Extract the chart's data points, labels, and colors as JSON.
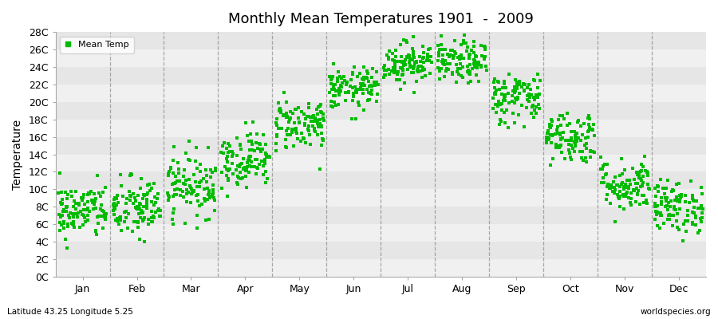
{
  "title": "Monthly Mean Temperatures 1901  -  2009",
  "ylabel": "Temperature",
  "subtitle_left": "Latitude 43.25 Longitude 5.25",
  "subtitle_right": "worldspecies.org",
  "legend_label": "Mean Temp",
  "ytick_labels": [
    "0C",
    "2C",
    "4C",
    "6C",
    "8C",
    "10C",
    "12C",
    "14C",
    "16C",
    "18C",
    "20C",
    "22C",
    "24C",
    "26C",
    "28C"
  ],
  "ytick_values": [
    0,
    2,
    4,
    6,
    8,
    10,
    12,
    14,
    16,
    18,
    20,
    22,
    24,
    26,
    28
  ],
  "ylim": [
    0,
    28
  ],
  "month_labels": [
    "Jan",
    "Feb",
    "Mar",
    "Apr",
    "May",
    "Jun",
    "Jul",
    "Aug",
    "Sep",
    "Oct",
    "Nov",
    "Dec"
  ],
  "dot_color": "#00BB00",
  "dot_size": 7,
  "background_color": "#FFFFFF",
  "plot_bg_color": "#F0F0F0",
  "band_color_even": "#F0F0F0",
  "band_color_odd": "#E6E6E6",
  "grid_color": "#777777",
  "monthly_means": [
    7.5,
    7.8,
    10.5,
    13.5,
    17.5,
    21.5,
    24.5,
    24.5,
    20.5,
    16.0,
    10.5,
    8.0
  ],
  "monthly_stds": [
    1.6,
    1.8,
    1.8,
    1.6,
    1.5,
    1.2,
    1.2,
    1.2,
    1.5,
    1.5,
    1.5,
    1.5
  ],
  "n_years": 109,
  "seed": 42
}
